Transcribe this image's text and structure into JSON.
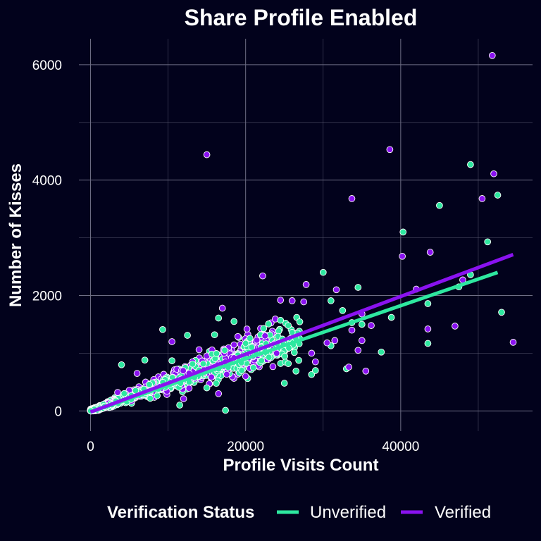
{
  "chart_data": {
    "type": "scatter",
    "title": "Share Profile Enabled",
    "xlabel": "Profile Visits Count",
    "ylabel": "Number of Kisses",
    "xlim": [
      -1500,
      57000
    ],
    "ylim": [
      -350,
      6450
    ],
    "x_ticks": [
      0,
      20000,
      40000
    ],
    "x_tick_labels": [
      "0",
      "20000",
      "40000"
    ],
    "y_ticks": [
      0,
      2000,
      4000,
      6000
    ],
    "y_tick_labels": [
      "0",
      "2000",
      "4000",
      "6000"
    ],
    "grid": true,
    "legend": {
      "title": "Verification Status",
      "position": "bottom",
      "entries": [
        "Unverified",
        "Verified"
      ]
    },
    "colors": {
      "background": "#02021c",
      "grid": "#6e6e85",
      "Unverified": "#2ee8a0",
      "Verified": "#8a12f0",
      "point_outline": "#ffffff"
    },
    "series": [
      {
        "name": "Unverified",
        "trend": {
          "x": [
            0,
            52500
          ],
          "y": [
            -20,
            2400
          ]
        },
        "points": [
          [
            49000,
            4270
          ],
          [
            52500,
            3740
          ],
          [
            45000,
            3560
          ],
          [
            40300,
            3100
          ],
          [
            51200,
            2930
          ],
          [
            30000,
            2400
          ],
          [
            49000,
            2360
          ],
          [
            47500,
            2150
          ],
          [
            34500,
            2140
          ],
          [
            31000,
            1910
          ],
          [
            32500,
            1740
          ],
          [
            43500,
            1860
          ],
          [
            53000,
            1710
          ],
          [
            38800,
            1620
          ],
          [
            35000,
            1500
          ],
          [
            33700,
            1530
          ],
          [
            43500,
            1170
          ],
          [
            37500,
            1020
          ],
          [
            33000,
            730
          ],
          [
            28500,
            630
          ],
          [
            9300,
            1410
          ],
          [
            12500,
            1310
          ],
          [
            16000,
            1320
          ],
          [
            16500,
            1610
          ],
          [
            18500,
            1550
          ],
          [
            17300,
            1050
          ],
          [
            20000,
            1170
          ],
          [
            22000,
            1100
          ],
          [
            24500,
            1570
          ],
          [
            25500,
            1480
          ],
          [
            26000,
            1360
          ],
          [
            23000,
            930
          ],
          [
            25500,
            820
          ],
          [
            26500,
            690
          ],
          [
            19500,
            700
          ],
          [
            4000,
            800
          ],
          [
            7000,
            880
          ],
          [
            10500,
            870
          ],
          [
            17400,
            10
          ],
          [
            11500,
            100
          ],
          [
            25000,
            480
          ],
          [
            15000,
            400
          ],
          [
            21000,
            750
          ],
          [
            29000,
            700
          ],
          [
            31000,
            1130
          ]
        ],
        "cloud": {
          "x_max": 27000,
          "slope": 0.048,
          "spread": 0.38,
          "count": 620,
          "seed": 7
        }
      },
      {
        "name": "Verified",
        "trend": {
          "x": [
            0,
            54500
          ],
          "y": [
            -20,
            2710
          ]
        },
        "points": [
          [
            51800,
            6160
          ],
          [
            15000,
            4440
          ],
          [
            38600,
            4530
          ],
          [
            52000,
            4110
          ],
          [
            50500,
            3680
          ],
          [
            33700,
            3680
          ],
          [
            43800,
            2750
          ],
          [
            40200,
            2680
          ],
          [
            22200,
            2340
          ],
          [
            48000,
            2270
          ],
          [
            27800,
            2190
          ],
          [
            42000,
            2110
          ],
          [
            31700,
            2100
          ],
          [
            24500,
            1920
          ],
          [
            26000,
            1910
          ],
          [
            27500,
            1890
          ],
          [
            17000,
            1780
          ],
          [
            35000,
            1680
          ],
          [
            33700,
            1400
          ],
          [
            36200,
            1480
          ],
          [
            43500,
            1420
          ],
          [
            47000,
            1470
          ],
          [
            31500,
            1220
          ],
          [
            35000,
            1220
          ],
          [
            54500,
            1190
          ],
          [
            34500,
            1050
          ],
          [
            35500,
            690
          ],
          [
            33300,
            760
          ],
          [
            20000,
            600
          ],
          [
            22500,
            1300
          ],
          [
            19000,
            1290
          ],
          [
            18500,
            920
          ],
          [
            10500,
            1200
          ],
          [
            14000,
            1060
          ],
          [
            6000,
            650
          ],
          [
            3500,
            320
          ],
          [
            12000,
            210
          ],
          [
            16500,
            300
          ],
          [
            24000,
            1000
          ],
          [
            29000,
            850
          ],
          [
            30500,
            1180
          ],
          [
            28500,
            1000
          ]
        ],
        "cloud": {
          "x_max": 24000,
          "slope": 0.05,
          "spread": 0.4,
          "count": 520,
          "seed": 13
        }
      }
    ]
  }
}
